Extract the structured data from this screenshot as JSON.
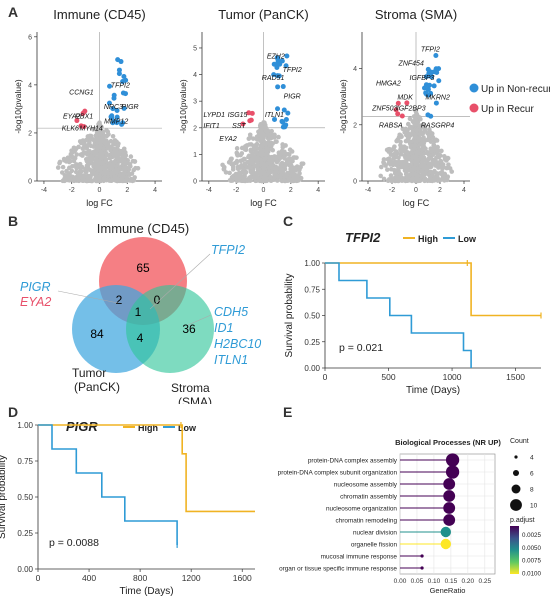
{
  "panels": {
    "a": "A",
    "b": "B",
    "c": "C",
    "d": "D",
    "e": "E"
  },
  "volcano": {
    "xlabel": "log FC",
    "ylabel": "-log10(pvalue)",
    "legend": {
      "up_nonrecur": "Up in Non-recur",
      "up_recur": "Up in Recur"
    },
    "colors": {
      "up_nonrecur": "#2f8fd8",
      "up_recur": "#e8506a",
      "background": "#bdbdbd"
    },
    "plots": [
      {
        "title": "Immune (CD45)",
        "xlim": [
          -4.5,
          4.5
        ],
        "xticks": [
          -4,
          -2,
          0,
          2,
          4
        ],
        "ylim": [
          0,
          6.2
        ],
        "yticks": [
          0,
          2,
          4,
          6
        ],
        "sig_y": 2.2,
        "labels": [
          {
            "text": "TFPI2",
            "x": 1.5,
            "y": 3.9,
            "group": "nonrecur"
          },
          {
            "text": "PIGR",
            "x": 2.2,
            "y": 3.0,
            "group": "nonrecur"
          },
          {
            "text": "NRC3",
            "x": 1.0,
            "y": 3.0,
            "group": "nonrecur"
          },
          {
            "text": "CCNG1",
            "x": -1.3,
            "y": 3.6,
            "group": "nonrecur"
          },
          {
            "text": "EYA2",
            "x": -2.0,
            "y": 2.6,
            "group": "recur"
          },
          {
            "text": "PBX1",
            "x": -1.1,
            "y": 2.6,
            "group": "nonrecur"
          },
          {
            "text": "MMP12",
            "x": 1.2,
            "y": 2.4,
            "group": "nonrecur"
          },
          {
            "text": "KLK6",
            "x": -2.1,
            "y": 2.1,
            "group": "nonrecur"
          },
          {
            "text": "MYH14",
            "x": -0.6,
            "y": 2.1,
            "group": "nonrecur"
          }
        ]
      },
      {
        "title": "Tumor (PanCK)",
        "xlim": [
          -4.5,
          4.5
        ],
        "xticks": [
          -4,
          -2,
          0,
          2,
          4
        ],
        "ylim": [
          0,
          5.6
        ],
        "yticks": [
          0,
          1,
          2,
          3,
          4,
          5
        ],
        "sig_y": 2.0,
        "labels": [
          {
            "text": "EZH2",
            "x": 0.9,
            "y": 4.6,
            "group": "nonrecur"
          },
          {
            "text": "TFPI2",
            "x": 2.1,
            "y": 4.1,
            "group": "nonrecur"
          },
          {
            "text": "RAD51",
            "x": 0.7,
            "y": 3.8,
            "group": "nonrecur"
          },
          {
            "text": "PIGR",
            "x": 2.1,
            "y": 3.1,
            "group": "nonrecur"
          },
          {
            "text": "LYPD1",
            "x": -3.6,
            "y": 2.4,
            "group": "recur"
          },
          {
            "text": "ISG15",
            "x": -1.9,
            "y": 2.4,
            "group": "recur"
          },
          {
            "text": "ITLN1",
            "x": 0.8,
            "y": 2.4,
            "group": "nonrecur"
          },
          {
            "text": "IFIT1",
            "x": -3.8,
            "y": 2.0,
            "group": "recur"
          },
          {
            "text": "SST",
            "x": -1.8,
            "y": 2.0,
            "group": "recur"
          },
          {
            "text": "EYA2",
            "x": -2.6,
            "y": 1.5,
            "group": "recur"
          }
        ]
      },
      {
        "title": "Stroma (SMA)",
        "xlim": [
          -4.5,
          4.5
        ],
        "xticks": [
          -4,
          -2,
          0,
          2,
          4
        ],
        "ylim": [
          0,
          5.3
        ],
        "yticks": [
          0,
          2,
          4
        ],
        "sig_y": 2.3,
        "labels": [
          {
            "text": "TFPI2",
            "x": 1.2,
            "y": 4.6,
            "group": "nonrecur"
          },
          {
            "text": "ZNF454",
            "x": -0.4,
            "y": 4.1,
            "group": "nonrecur"
          },
          {
            "text": "IGFBP3",
            "x": 0.5,
            "y": 3.6,
            "group": "nonrecur"
          },
          {
            "text": "HMGA2",
            "x": -2.3,
            "y": 3.4,
            "group": "recur"
          },
          {
            "text": "MDK",
            "x": -0.9,
            "y": 2.9,
            "group": "recur"
          },
          {
            "text": "MKRN2",
            "x": 1.8,
            "y": 2.9,
            "group": "nonrecur"
          },
          {
            "text": "ZNF503",
            "x": -2.6,
            "y": 2.5,
            "group": "recur"
          },
          {
            "text": "IGF2BP3",
            "x": -0.4,
            "y": 2.5,
            "group": "recur"
          },
          {
            "text": "RABSA",
            "x": -2.1,
            "y": 1.9,
            "group": "recur"
          },
          {
            "text": "RASGRP4",
            "x": 1.8,
            "y": 1.9,
            "group": "nonrecur"
          }
        ]
      }
    ]
  },
  "venn": {
    "sets": {
      "immune": "Immune (CD45)",
      "tumor": "Tumor\n(PanCK)",
      "stroma": "Stroma\n(SMA)"
    },
    "counts": {
      "immune_only": "65",
      "tumor_only": "84",
      "stroma_only": "36",
      "immune_tumor": "2",
      "immune_stroma": "0",
      "tumor_stroma": "4",
      "all": "1"
    },
    "callouts": {
      "left_blue": "PIGR",
      "left_red": "EYA2",
      "top_right": "TFPI2",
      "right_genes": [
        "CDH5",
        "ID1",
        "H2BC10",
        "ITLN1"
      ]
    },
    "colors": {
      "immune": "#f3696f",
      "tumor": "#3fa6df",
      "stroma": "#2ec59a"
    }
  },
  "chart_data": [
    {
      "type": "line",
      "title": "TFPI2",
      "xlabel": "Time (Days)",
      "ylabel": "Survival probability",
      "xlim": [
        0,
        1700
      ],
      "ylim": [
        0,
        1.0
      ],
      "xticks": [
        0,
        500,
        1000,
        1500
      ],
      "yticks": [
        0.0,
        0.25,
        0.5,
        0.75,
        1.0
      ],
      "pvalue": "p = 0.021",
      "series": [
        {
          "name": "High",
          "color": "#f0b323",
          "steps": [
            [
              0,
              1.0
            ],
            [
              1150,
              1.0
            ],
            [
              1150,
              0.5
            ],
            [
              1700,
              0.5
            ]
          ],
          "censor": [
            [
              1700,
              0.5
            ],
            [
              1120,
              1.0
            ]
          ]
        },
        {
          "name": "Low",
          "color": "#2f9bd6",
          "steps": [
            [
              0,
              1.0
            ],
            [
              110,
              1.0
            ],
            [
              110,
              0.833
            ],
            [
              330,
              0.833
            ],
            [
              330,
              0.667
            ],
            [
              510,
              0.667
            ],
            [
              510,
              0.5
            ],
            [
              680,
              0.5
            ],
            [
              680,
              0.333
            ],
            [
              1090,
              0.333
            ],
            [
              1090,
              0.167
            ],
            [
              1150,
              0.167
            ],
            [
              1150,
              0.0
            ]
          ],
          "censor": []
        }
      ]
    },
    {
      "type": "line",
      "title": "PIGR",
      "xlabel": "Time (Days)",
      "ylabel": "Survival probability",
      "xlim": [
        0,
        1700
      ],
      "ylim": [
        0,
        1.0
      ],
      "xticks": [
        0,
        400,
        800,
        1200,
        1600
      ],
      "yticks": [
        0.0,
        0.25,
        0.5,
        0.75,
        1.0
      ],
      "pvalue": "p = 0.0088",
      "series": [
        {
          "name": "High",
          "color": "#f0b323",
          "steps": [
            [
              0,
              1.0
            ],
            [
              1130,
              1.0
            ],
            [
              1130,
              0.8
            ],
            [
              1160,
              0.8
            ],
            [
              1160,
              0.4
            ],
            [
              1700,
              0.4
            ]
          ],
          "censor": [
            [
              1120,
              1.0
            ]
          ]
        },
        {
          "name": "Low",
          "color": "#2f9bd6",
          "steps": [
            [
              0,
              1.0
            ],
            [
              110,
              1.0
            ],
            [
              110,
              0.833
            ],
            [
              300,
              0.833
            ],
            [
              300,
              0.667
            ],
            [
              500,
              0.667
            ],
            [
              500,
              0.5
            ],
            [
              680,
              0.5
            ],
            [
              680,
              0.333
            ],
            [
              1090,
              0.333
            ],
            [
              1090,
              0.167
            ]
          ],
          "censor": [
            [
              1090,
              0.167
            ]
          ]
        }
      ]
    },
    {
      "type": "scatter",
      "title": "Biological Processes (NR UP)",
      "xlabel": "GeneRatio",
      "xlim": [
        0,
        0.28
      ],
      "xticks": [
        0.0,
        0.05,
        0.1,
        0.15,
        0.2,
        0.25
      ],
      "categories": [
        "protein-DNA complex assembly",
        "protein-DNA complex subunit organization",
        "nucleosome assembly",
        "chromatin assembly",
        "nucleosome organization",
        "chromatin remodeling",
        "nuclear division",
        "organelle fission",
        "mucosal immune response",
        "organ or tissue specific immune response"
      ],
      "gene_ratio": [
        0.155,
        0.155,
        0.145,
        0.145,
        0.145,
        0.145,
        0.135,
        0.135,
        0.065,
        0.065
      ],
      "count": [
        11,
        11,
        10,
        10,
        10,
        10,
        9,
        9,
        4,
        4
      ],
      "p_adjust": [
        0.0008,
        0.0008,
        0.0008,
        0.0008,
        0.0008,
        0.0008,
        0.0055,
        0.0102,
        0.0008,
        0.0008
      ],
      "size_legend": {
        "title": "Count",
        "values": [
          4,
          6,
          8,
          10
        ]
      },
      "color_legend": {
        "title": "p.adjust",
        "ticks": [
          "0.0025",
          "0.0050",
          "0.0075",
          "0.0100"
        ]
      }
    }
  ]
}
